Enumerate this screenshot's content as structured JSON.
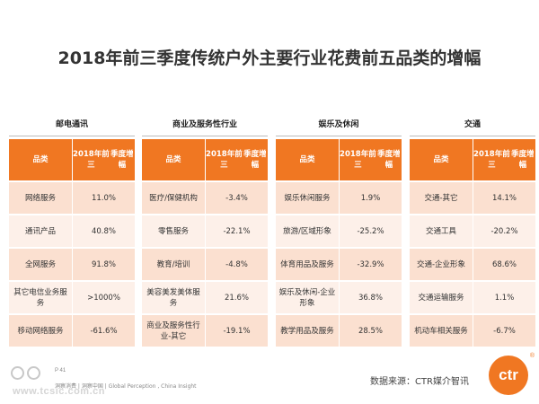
{
  "title": "2018年前三季度传统户外主要行业花费前五品类的增幅",
  "table_header": {
    "category": "品类",
    "growth_line1": "2018年前三",
    "growth_line2": "季度增幅"
  },
  "groups": [
    {
      "name": "邮电通讯",
      "rows": [
        {
          "item": "网络服务",
          "value": "11.0%"
        },
        {
          "item": "通讯产品",
          "value": "40.8%"
        },
        {
          "item": "全网服务",
          "value": "91.8%"
        },
        {
          "item": "其它电信业务服务",
          "value": ">1000%"
        },
        {
          "item": "移动网络服务",
          "value": "-61.6%"
        }
      ]
    },
    {
      "name": "商业及服务性行业",
      "rows": [
        {
          "item": "医疗/保健机构",
          "value": "-3.4%"
        },
        {
          "item": "零售服务",
          "value": "-22.1%"
        },
        {
          "item": "教育/培训",
          "value": "-4.8%"
        },
        {
          "item": "美容美发美体服务",
          "value": "21.6%"
        },
        {
          "item": "商业及服务性行业-其它",
          "value": "-19.1%"
        }
      ]
    },
    {
      "name": "娱乐及休闲",
      "rows": [
        {
          "item": "娱乐休闲服务",
          "value": "1.9%"
        },
        {
          "item": "旅游/区域形象",
          "value": "-25.2%"
        },
        {
          "item": "体育用品及服务",
          "value": "-32.9%"
        },
        {
          "item": "娱乐及休闲-企业形象",
          "value": "36.8%"
        },
        {
          "item": "教学用品及服务",
          "value": "28.5%"
        }
      ]
    },
    {
      "name": "交通",
      "rows": [
        {
          "item": "交通-其它",
          "value": "14.1%"
        },
        {
          "item": "交通工具",
          "value": "-20.2%"
        },
        {
          "item": "交通-企业形象",
          "value": "68.6%"
        },
        {
          "item": "交通运输服务",
          "value": "1.1%"
        },
        {
          "item": "机动车相关服务",
          "value": "-6.7%"
        }
      ]
    }
  ],
  "source": "数据来源：CTR媒介智讯",
  "logo_text": "ctr",
  "logo_mark": "®",
  "page_number": "P 41",
  "footer_brands": "洞察消费 | 洞察中国 | Global Perception , China Insight",
  "watermark_url": "www.tcsic.com.cn",
  "colors": {
    "header_orange": "#f07722",
    "row_odd": "#fbe0d0",
    "row_even": "#fdf0e9"
  }
}
